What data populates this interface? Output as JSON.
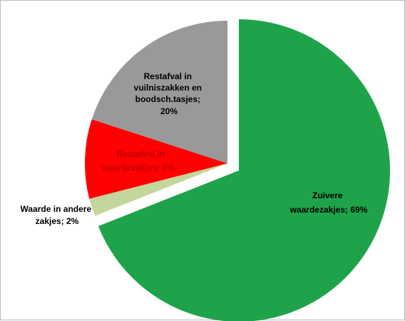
{
  "chart_data": {
    "type": "pie",
    "title": "",
    "slices": [
      {
        "label": "Zuivere waardezakjes; 69%",
        "category": "Zuivere waardezakjes",
        "value": 69,
        "color": "#1fa34a",
        "label_color": "#000000"
      },
      {
        "label": "Waarde in andere zakjes; 2%",
        "category": "Waarde in andere zakjes",
        "value": 2,
        "color": "#c3d69b",
        "label_color": "#000000"
      },
      {
        "label": "Restafval in waardezakjes; 9%",
        "category": "Restafval in waardezakjes",
        "value": 9,
        "color": "#ff0000",
        "label_color": "#c00000"
      },
      {
        "label": "Restafval in vuilniszakken en boodsch.tasjes; 20%",
        "category": "Restafval in vuilniszakken en boodsch.tasjes",
        "value": 20,
        "color": "#999999",
        "label_color": "#000000"
      }
    ],
    "start": "12 o'clock",
    "direction": "clockwise",
    "exploded": [
      "Waarde in andere zakjes",
      "Restafval in waardezakjes",
      "Restafval in vuilniszakken en boodsch.tasjes"
    ],
    "legend": "none"
  }
}
